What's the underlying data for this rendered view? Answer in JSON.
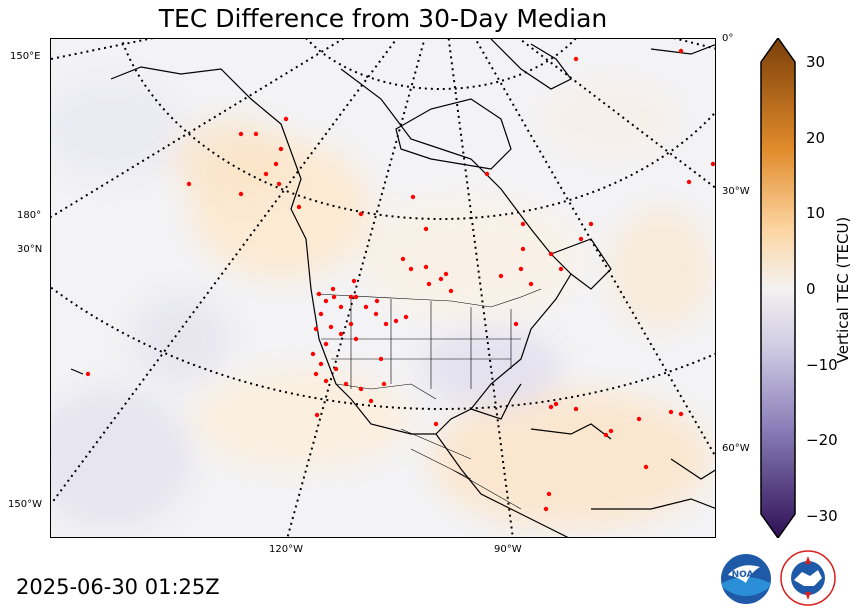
{
  "title": "TEC Difference from 30-Day Median",
  "timestamp": "2025-06-30 01:25Z",
  "colorbar": {
    "label": "Vertical TEC (TECU)",
    "ticks": [
      "30",
      "20",
      "10",
      "0",
      "−10",
      "−20",
      "−30"
    ],
    "min": -30,
    "max": 30,
    "colors": {
      "positive_max": "#7a3f0a",
      "positive_mid": "#f0a040",
      "neutral": "#f4f2f0",
      "negative_mid": "#9c94c4",
      "negative_max": "#2e0f55"
    }
  },
  "coordinate_labels": {
    "left": [
      "150°E",
      "180°",
      "30°N",
      "150°W"
    ],
    "right": [
      "0°",
      "30°W",
      "60°W"
    ],
    "bottom": [
      "120°W",
      "90°W"
    ]
  },
  "station_color": "#ff0000",
  "logos": [
    "NOAA",
    "NATIONAL WEATHER SERVICE"
  ]
}
